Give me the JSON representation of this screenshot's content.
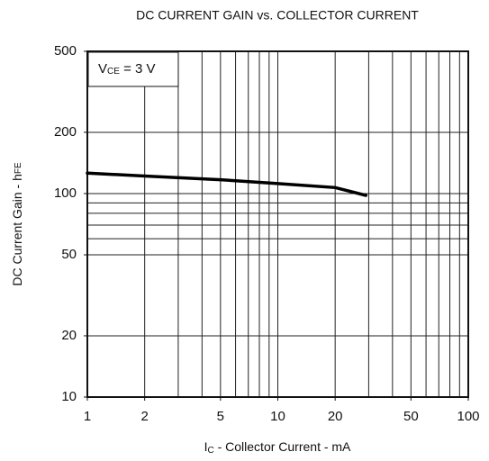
{
  "chart_data": {
    "type": "line",
    "title": "DC CURRENT GAIN vs. COLLECTOR CURRENT",
    "xlabel": {
      "symbol": "I",
      "subscript": "C",
      "text": " - Collector Current - mA"
    },
    "ylabel": {
      "text": "DC Current Gain - h",
      "subscript": "FE"
    },
    "annotation": {
      "symbol": "V",
      "subscript": "CE",
      "text": " = 3 V"
    },
    "xscale": "log",
    "yscale": "log",
    "xlim": [
      1,
      100
    ],
    "ylim": [
      10,
      500
    ],
    "xticks": [
      1,
      2,
      5,
      10,
      20,
      50,
      100
    ],
    "yticks": [
      10,
      20,
      50,
      100,
      200,
      500
    ],
    "xgrid": [
      1,
      2,
      3,
      4,
      5,
      6,
      7,
      8,
      9,
      10,
      20,
      30,
      40,
      50,
      60,
      70,
      80,
      90,
      100
    ],
    "ygrid": [
      10,
      20,
      50,
      60,
      70,
      80,
      90,
      100,
      200,
      500
    ],
    "x": [
      1,
      2,
      5,
      10,
      20,
      29
    ],
    "series": [
      {
        "color": "#000000",
        "values": [
          126,
          122,
          117,
          112,
          107,
          98
        ]
      }
    ]
  }
}
